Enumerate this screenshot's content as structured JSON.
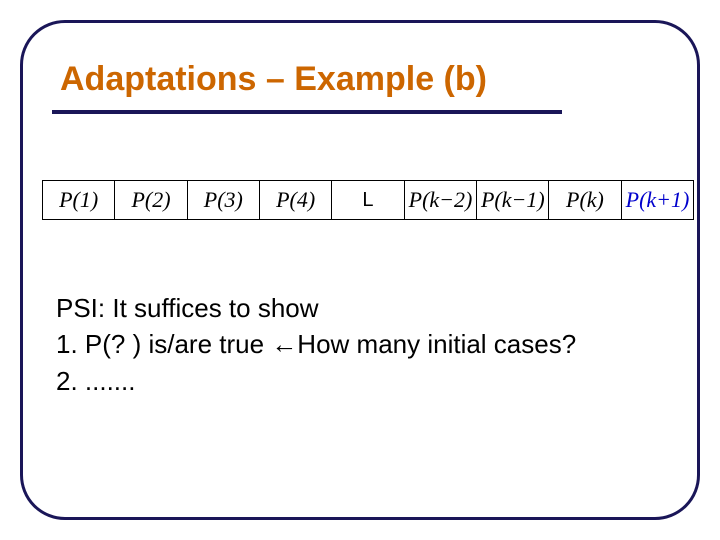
{
  "colors": {
    "frame_border": "#1a1658",
    "title_color": "#cc6600",
    "underline_color": "#1a1658",
    "cell_border": "#000000",
    "text_black": "#000000",
    "text_blue": "#0000cc",
    "background": "#ffffff"
  },
  "title": "Adaptations – Example (b)",
  "table": {
    "cells": [
      {
        "label": "P(1)",
        "blue": false
      },
      {
        "label": "P(2)",
        "blue": false
      },
      {
        "label": "P(3)",
        "blue": false
      },
      {
        "label": "P(4)",
        "blue": false
      },
      {
        "label": "L",
        "blue": false,
        "ellipsis": true
      },
      {
        "label": "P(k−2)",
        "blue": false
      },
      {
        "label": "P(k−1)",
        "blue": false
      },
      {
        "label": "P(k)",
        "blue": false
      },
      {
        "label": "P(k+1)",
        "blue": true
      }
    ]
  },
  "body": {
    "line1": "PSI: It suffices to show",
    "line2": "1. P(? ) is/are true ←How many initial cases?",
    "line3": "2. ......."
  }
}
